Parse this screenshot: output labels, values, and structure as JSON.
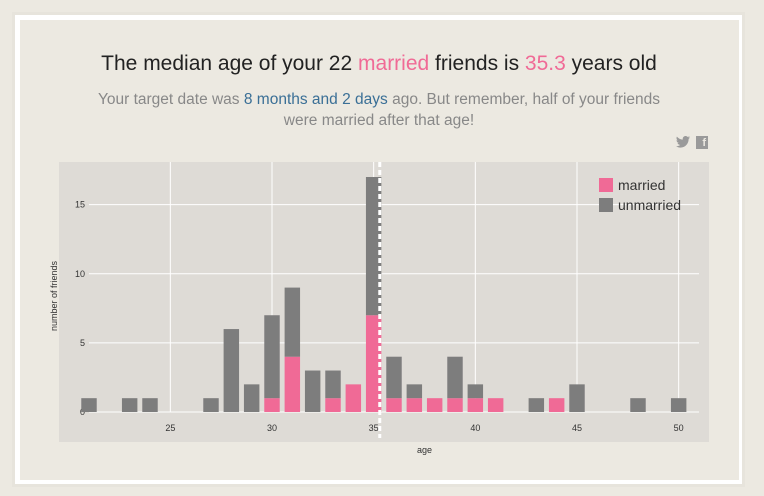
{
  "headline": {
    "part1": "The median age of your 22 ",
    "married_word": "married",
    "part2": " friends is ",
    "median_value": "35.3",
    "part3": " years old"
  },
  "subtitle": {
    "part1": "Your target date was ",
    "highlight": "8 months and 2 days",
    "part2": " ago. But remember, half of your friends were married after that age!"
  },
  "social": {
    "twitter_icon": "twitter-icon",
    "facebook_icon": "facebook-icon",
    "facebook_glyph": "f"
  },
  "colors": {
    "married": "#f06a96",
    "unmarried": "#7d7d7d",
    "plot_bg": "#dedbd6",
    "median_line": "#ffffff"
  },
  "chart_data": {
    "type": "bar",
    "stacked": true,
    "xlabel": "age",
    "ylabel": "number of friends",
    "xlim": [
      21,
      51
    ],
    "ylim": [
      0,
      17
    ],
    "x_ticks": [
      25,
      30,
      35,
      40,
      45,
      50
    ],
    "y_ticks": [
      0,
      5,
      10,
      15
    ],
    "median": 35.3,
    "legend": {
      "placement": "top-right",
      "entries": [
        "married",
        "unmarried"
      ]
    },
    "x": [
      21,
      23,
      24,
      27,
      28,
      29,
      30,
      31,
      32,
      33,
      34,
      35,
      36,
      37,
      38,
      39,
      40,
      41,
      43,
      44,
      45,
      48,
      50
    ],
    "series": [
      {
        "name": "married",
        "values": [
          0,
          0,
          0,
          0,
          0,
          0,
          1,
          4,
          0,
          1,
          2,
          7,
          1,
          1,
          1,
          1,
          1,
          1,
          0,
          1,
          0,
          0,
          0
        ]
      },
      {
        "name": "unmarried",
        "values": [
          1,
          1,
          1,
          1,
          6,
          2,
          6,
          5,
          3,
          2,
          0,
          10,
          3,
          1,
          0,
          3,
          1,
          0,
          1,
          0,
          2,
          1,
          1
        ]
      }
    ]
  }
}
